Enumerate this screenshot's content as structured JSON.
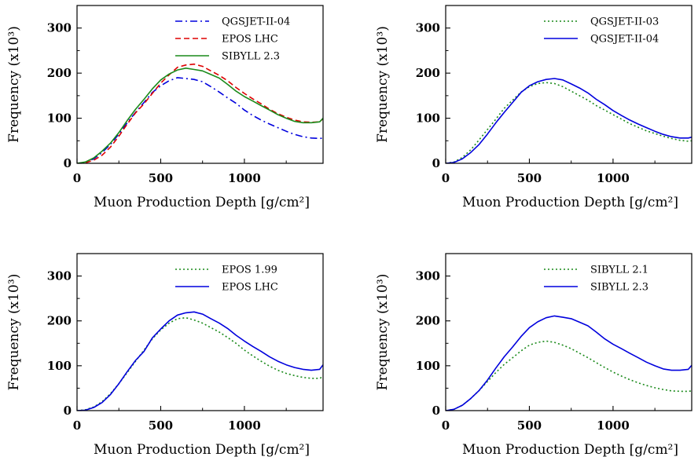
{
  "chart_data": [
    {
      "type": "line",
      "xlabel": "Muon Production Depth [g/cm²]",
      "ylabel": "Frequency (x10³)",
      "xlim": [
        0,
        1470
      ],
      "ylim": [
        0,
        350
      ],
      "xticks": [
        0,
        500,
        1000
      ],
      "yticks": [
        0,
        100,
        200,
        300
      ],
      "grid": false,
      "legend": "top-right",
      "series": [
        {
          "name": "QGSJET-II-04",
          "color": "#0000dd",
          "style": "dashdot",
          "x": [
            0,
            50,
            100,
            150,
            200,
            250,
            300,
            350,
            400,
            450,
            500,
            550,
            600,
            650,
            700,
            750,
            800,
            850,
            900,
            950,
            1000,
            1050,
            1100,
            1150,
            1200,
            1250,
            1300,
            1350,
            1400,
            1450,
            1470
          ],
          "y": [
            0,
            2,
            10,
            24,
            42,
            65,
            90,
            113,
            135,
            157,
            172,
            183,
            190,
            188,
            186,
            181,
            170,
            158,
            145,
            133,
            118,
            106,
            96,
            87,
            79,
            71,
            64,
            59,
            56,
            55,
            56
          ]
        },
        {
          "name": "EPOS LHC",
          "color": "#dd0000",
          "style": "dashed",
          "x": [
            0,
            50,
            100,
            150,
            200,
            250,
            300,
            350,
            400,
            450,
            500,
            550,
            600,
            650,
            700,
            750,
            800,
            850,
            900,
            950,
            1000,
            1050,
            1100,
            1150,
            1200,
            1250,
            1300,
            1350,
            1400,
            1450,
            1470
          ],
          "y": [
            0,
            1,
            7,
            18,
            36,
            60,
            87,
            112,
            132,
            155,
            178,
            196,
            213,
            218,
            220,
            215,
            205,
            195,
            183,
            168,
            155,
            143,
            132,
            120,
            110,
            102,
            96,
            92,
            91,
            92,
            99
          ]
        },
        {
          "name": "SIBYLL 2.3",
          "color": "#1a8a1a",
          "style": "solid",
          "x": [
            0,
            50,
            100,
            150,
            200,
            250,
            300,
            350,
            400,
            450,
            500,
            550,
            600,
            650,
            700,
            750,
            800,
            850,
            900,
            950,
            1000,
            1050,
            1100,
            1150,
            1200,
            1250,
            1300,
            1350,
            1400,
            1450,
            1470
          ],
          "y": [
            0,
            3,
            12,
            27,
            45,
            68,
            95,
            120,
            142,
            165,
            185,
            198,
            207,
            211,
            208,
            205,
            197,
            189,
            175,
            160,
            148,
            138,
            128,
            118,
            108,
            100,
            93,
            90,
            90,
            92,
            100
          ]
        }
      ]
    },
    {
      "type": "line",
      "xlabel": "Muon Production Depth [g/cm²]",
      "ylabel": "Frequency (x10³)",
      "xlim": [
        0,
        1470
      ],
      "ylim": [
        0,
        350
      ],
      "xticks": [
        0,
        500,
        1000
      ],
      "yticks": [
        0,
        100,
        200,
        300
      ],
      "grid": false,
      "legend": "top-right",
      "series": [
        {
          "name": "QGSJET-II-03",
          "color": "#1a8a1a",
          "style": "dotted",
          "x": [
            0,
            50,
            100,
            150,
            200,
            250,
            300,
            350,
            400,
            450,
            500,
            550,
            600,
            650,
            700,
            750,
            800,
            850,
            900,
            950,
            1000,
            1050,
            1100,
            1150,
            1200,
            1250,
            1300,
            1350,
            1400,
            1450,
            1470
          ],
          "y": [
            0,
            3,
            13,
            30,
            52,
            75,
            98,
            122,
            140,
            158,
            170,
            177,
            179,
            177,
            170,
            160,
            150,
            140,
            128,
            118,
            108,
            98,
            88,
            80,
            72,
            66,
            60,
            55,
            51,
            49,
            50
          ]
        },
        {
          "name": "QGSJET-II-04",
          "color": "#0000dd",
          "style": "solid",
          "x": [
            0,
            50,
            100,
            150,
            200,
            250,
            300,
            350,
            400,
            450,
            500,
            550,
            600,
            650,
            700,
            750,
            800,
            850,
            900,
            950,
            1000,
            1050,
            1100,
            1150,
            1200,
            1250,
            1300,
            1350,
            1400,
            1450,
            1470
          ],
          "y": [
            0,
            2,
            10,
            24,
            42,
            65,
            90,
            113,
            135,
            157,
            172,
            181,
            186,
            188,
            185,
            176,
            167,
            156,
            142,
            130,
            117,
            106,
            96,
            87,
            79,
            71,
            64,
            59,
            56,
            56,
            58
          ]
        }
      ]
    },
    {
      "type": "line",
      "xlabel": "Muon Production Depth [g/cm²]",
      "ylabel": "Frequency (x10³)",
      "xlim": [
        0,
        1470
      ],
      "ylim": [
        0,
        350
      ],
      "xticks": [
        0,
        500,
        1000
      ],
      "yticks": [
        0,
        100,
        200,
        300
      ],
      "grid": false,
      "legend": "top-right",
      "series": [
        {
          "name": "EPOS 1.99",
          "color": "#1a8a1a",
          "style": "dotted",
          "x": [
            0,
            50,
            100,
            150,
            200,
            250,
            300,
            350,
            400,
            450,
            500,
            550,
            600,
            650,
            700,
            750,
            800,
            850,
            900,
            950,
            1000,
            1050,
            1100,
            1150,
            1200,
            1250,
            1300,
            1350,
            1400,
            1450,
            1470
          ],
          "y": [
            0,
            2,
            8,
            20,
            38,
            60,
            85,
            110,
            135,
            160,
            180,
            195,
            205,
            207,
            202,
            195,
            185,
            175,
            163,
            150,
            135,
            122,
            110,
            99,
            90,
            83,
            78,
            74,
            72,
            72,
            76
          ]
        },
        {
          "name": "EPOS LHC",
          "color": "#0000dd",
          "style": "solid",
          "x": [
            0,
            50,
            100,
            150,
            200,
            250,
            300,
            350,
            400,
            450,
            500,
            550,
            600,
            650,
            700,
            750,
            800,
            850,
            900,
            950,
            1000,
            1050,
            1100,
            1150,
            1200,
            1250,
            1300,
            1350,
            1400,
            1450,
            1470
          ],
          "y": [
            0,
            1,
            7,
            18,
            36,
            60,
            87,
            112,
            132,
            162,
            182,
            200,
            213,
            218,
            220,
            215,
            205,
            195,
            183,
            168,
            155,
            143,
            132,
            120,
            110,
            102,
            96,
            92,
            90,
            92,
            102
          ]
        }
      ]
    },
    {
      "type": "line",
      "xlabel": "Muon Production Depth [g/cm²]",
      "ylabel": "Frequency (x10³)",
      "xlim": [
        0,
        1470
      ],
      "ylim": [
        0,
        350
      ],
      "xticks": [
        0,
        500,
        1000
      ],
      "yticks": [
        0,
        100,
        200,
        300
      ],
      "grid": false,
      "legend": "top-right",
      "series": [
        {
          "name": "SIBYLL 2.1",
          "color": "#1a8a1a",
          "style": "dotted",
          "x": [
            0,
            50,
            100,
            150,
            200,
            250,
            300,
            350,
            400,
            450,
            500,
            550,
            600,
            650,
            700,
            750,
            800,
            850,
            900,
            950,
            1000,
            1050,
            1100,
            1150,
            1200,
            1250,
            1300,
            1350,
            1400,
            1450,
            1470
          ],
          "y": [
            0,
            3,
            12,
            27,
            45,
            65,
            85,
            103,
            118,
            133,
            146,
            152,
            155,
            152,
            146,
            138,
            128,
            118,
            107,
            96,
            86,
            77,
            69,
            62,
            56,
            51,
            47,
            44,
            43,
            43,
            44
          ]
        },
        {
          "name": "SIBYLL 2.3",
          "color": "#0000dd",
          "style": "solid",
          "x": [
            0,
            50,
            100,
            150,
            200,
            250,
            300,
            350,
            400,
            450,
            500,
            550,
            600,
            650,
            700,
            750,
            800,
            850,
            900,
            950,
            1000,
            1050,
            1100,
            1150,
            1200,
            1250,
            1300,
            1350,
            1400,
            1450,
            1470
          ],
          "y": [
            0,
            3,
            12,
            27,
            45,
            68,
            95,
            120,
            142,
            165,
            185,
            198,
            207,
            211,
            208,
            205,
            197,
            189,
            175,
            160,
            148,
            138,
            128,
            118,
            108,
            100,
            93,
            90,
            90,
            92,
            101
          ]
        }
      ]
    }
  ]
}
